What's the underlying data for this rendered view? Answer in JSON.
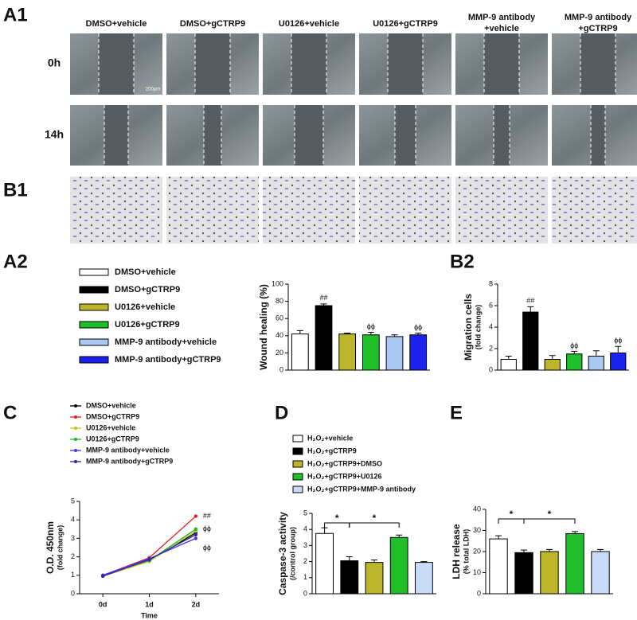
{
  "panels": {
    "a1": "A1",
    "b1": "B1",
    "a2": "A2",
    "b2": "B2",
    "c": "C",
    "d": "D",
    "e": "E"
  },
  "micrographs": {
    "columns": [
      "DMSO+vehicle",
      "DMSO+gCTRP9",
      "U0126+vehicle",
      "U0126+gCTRP9",
      "MMP-9 antibody +vehicle",
      "MMP-9 antibody +gCTRP9"
    ],
    "rows": [
      "0h",
      "14h"
    ],
    "scale_bar": "200μm"
  },
  "chart_data": [
    {
      "type": "bar",
      "ylabel": "Wound healing (%)",
      "categories": [
        "DMSO+vehicle",
        "DMSO+gCTRP9",
        "U0126+vehicle",
        "U0126+gCTRP9",
        "MMP-9 antibody+vehicle",
        "MMP-9 antibody+gCTRP9"
      ],
      "values": [
        42,
        75,
        42,
        41,
        39,
        41
      ],
      "errors": [
        4,
        2,
        1,
        3,
        2,
        2
      ],
      "colors": [
        "#ffffff",
        "#000000",
        "#bdb52a",
        "#1fbf2a",
        "#a9c9f2",
        "#1c22ee"
      ],
      "ylim": [
        0,
        100
      ],
      "yticks": [
        0,
        20,
        40,
        60,
        80,
        100
      ],
      "annotations": [
        {
          "index": 1,
          "text": "##"
        },
        {
          "index": 3,
          "text": "ϕϕ"
        },
        {
          "index": 5,
          "text": "ϕϕ"
        }
      ]
    },
    {
      "type": "bar",
      "ylabel": "Migration cells",
      "y_sublabel": "(fold change)",
      "values": [
        1,
        5.4,
        1,
        1.5,
        1.3,
        1.6
      ],
      "errors": [
        0.3,
        0.5,
        0.35,
        0.25,
        0.5,
        0.6
      ],
      "colors": [
        "#ffffff",
        "#000000",
        "#bdb52a",
        "#1fbf2a",
        "#a9c9f2",
        "#1c22ee"
      ],
      "ylim": [
        0,
        8
      ],
      "yticks": [
        0,
        2,
        4,
        6,
        8
      ],
      "annotations": [
        {
          "index": 1,
          "text": "##"
        },
        {
          "index": 3,
          "text": "ϕϕ"
        },
        {
          "index": 5,
          "text": "ϕϕ"
        }
      ]
    },
    {
      "type": "line",
      "ylabel": "O.D. 450nm",
      "y_sublabel": "(fold change)",
      "xlabel": "Time",
      "categories": [
        "0d",
        "1d",
        "2d"
      ],
      "series": [
        {
          "name": "DMSO+vehicle",
          "color": "#000000",
          "values": [
            1.0,
            1.8,
            3.3
          ]
        },
        {
          "name": "DMSO+gCTRP9",
          "color": "#e81c1c",
          "values": [
            1.0,
            1.95,
            4.2
          ]
        },
        {
          "name": "U0126+vehicle",
          "color": "#c8c21a",
          "values": [
            0.95,
            1.75,
            3.4
          ]
        },
        {
          "name": "U0126+gCTRP9",
          "color": "#1fb52a",
          "values": [
            1.0,
            1.8,
            3.5
          ]
        },
        {
          "name": "MMP-9 antibody+vehicle",
          "color": "#3a3aff",
          "values": [
            1.0,
            1.9,
            3.0
          ]
        },
        {
          "name": "MMP-9 antibody+gCTRP9",
          "color": "#3a1fa8",
          "values": [
            0.95,
            1.85,
            3.2
          ]
        }
      ],
      "ylim": [
        0,
        5
      ],
      "yticks": [
        0,
        1,
        2,
        3,
        4,
        5
      ],
      "annotations": [
        {
          "series": 1,
          "text": "##"
        },
        {
          "series": 3,
          "text": "ϕϕ"
        },
        {
          "series": 4,
          "text": "ϕϕ"
        }
      ]
    },
    {
      "type": "bar",
      "ylabel": "Caspase-3 activity",
      "y_sublabel": "(/control group)",
      "categories": [
        "H₂O₂+vehicle",
        "H₂O₂+gCTRP9",
        "H₂O₂+gCTRP9+DMSO",
        "H₂O₂+gCTRP9+U0126",
        "H₂O₂+gCTRP9+MMP-9 antibody"
      ],
      "values": [
        3.75,
        2.05,
        1.95,
        3.5,
        1.95
      ],
      "errors": [
        0.35,
        0.25,
        0.15,
        0.15,
        0.05
      ],
      "colors": [
        "#ffffff",
        "#000000",
        "#bdb52a",
        "#1fbf2a",
        "#c9dcf7"
      ],
      "ylim": [
        0,
        5
      ],
      "yticks": [
        0,
        1,
        2,
        3,
        4,
        5
      ],
      "brackets": [
        {
          "from": 0,
          "to": 1,
          "text": "*"
        },
        {
          "from": 1,
          "to": 3,
          "text": "*"
        }
      ]
    },
    {
      "type": "bar",
      "ylabel": "LDH release",
      "y_sublabel": "(% total LDH)",
      "values": [
        26,
        19.5,
        20,
        28.5,
        20
      ],
      "errors": [
        1.5,
        1.2,
        1,
        1,
        1
      ],
      "colors": [
        "#ffffff",
        "#000000",
        "#bdb52a",
        "#1fbf2a",
        "#c9dcf7"
      ],
      "ylim": [
        0,
        40
      ],
      "yticks": [
        0,
        10,
        20,
        30,
        40
      ],
      "brackets": [
        {
          "from": 0,
          "to": 1,
          "text": "*"
        },
        {
          "from": 1,
          "to": 3,
          "text": "*"
        }
      ]
    }
  ]
}
